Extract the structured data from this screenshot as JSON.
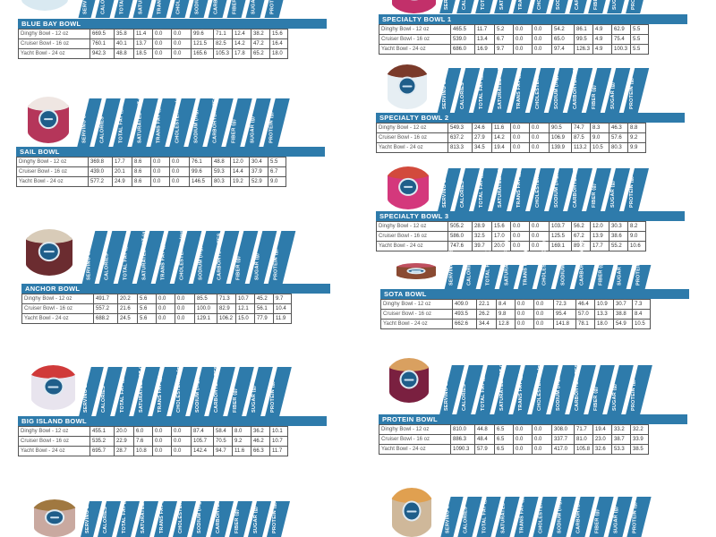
{
  "columns": [
    "SERVING SIZE",
    "CALORIES",
    "TOTAL FAT (g)",
    "SATURATED FAT (g)",
    "TRANS FAT (g)",
    "CHOLESTEROL (mg)",
    "SODIUM (mg)",
    "CARBOHYDRATES",
    "FIBER (g)",
    "SUGAR (g)",
    "PROTEIN (g)"
  ],
  "sizes": [
    "Dinghy Bowl - 12 oz",
    "Cruiser Bowl - 16 oz",
    "Yacht Bowl - 24 oz"
  ],
  "colors": {
    "accent": "#2e7bab",
    "border": "#555555",
    "text": "#333333"
  },
  "bowls": [
    {
      "name": "BLUE BAY BOWL",
      "rows": [
        [
          "669.5",
          "35.8",
          "11.4",
          "0.0",
          "0.0",
          "99.6",
          "71.1",
          "12.4",
          "38.2",
          "15.6"
        ],
        [
          "760.1",
          "40.1",
          "13.7",
          "0.0",
          "0.0",
          "121.5",
          "82.5",
          "14.2",
          "47.2",
          "16.4"
        ],
        [
          "942.3",
          "48.8",
          "18.5",
          "0.0",
          "0.0",
          "165.6",
          "105.3",
          "17.8",
          "65.2",
          "18.0"
        ]
      ]
    },
    {
      "name": "SPECIALTY BOWL 1",
      "rows": [
        [
          "465.5",
          "11.7",
          "5.2",
          "0.0",
          "0.0",
          "54.2",
          "86.1",
          "4.9",
          "62.9",
          "5.5"
        ],
        [
          "539.0",
          "13.4",
          "6.7",
          "0.0",
          "0.0",
          "65.0",
          "99.5",
          "4.9",
          "75.4",
          "5.5"
        ],
        [
          "686.0",
          "16.9",
          "9.7",
          "0.0",
          "0.0",
          "97.4",
          "126.3",
          "4.9",
          "100.3",
          "5.5"
        ]
      ]
    },
    {
      "name": "SAIL BOWL",
      "rows": [
        [
          "369.8",
          "17.7",
          "8.6",
          "0.0",
          "0.0",
          "76.1",
          "48.8",
          "12.0",
          "30.4",
          "5.5"
        ],
        [
          "439.0",
          "20.1",
          "8.6",
          "0.0",
          "0.0",
          "99.6",
          "59.3",
          "14.4",
          "37.9",
          "6.7"
        ],
        [
          "577.2",
          "24.9",
          "8.6",
          "0.0",
          "0.0",
          "146.5",
          "80.3",
          "19.2",
          "52.9",
          "9.0"
        ]
      ]
    },
    {
      "name": "SPECIALTY BOWL 2",
      "rows": [
        [
          "549.3",
          "24.6",
          "11.6",
          "0.0",
          "0.0",
          "90.5",
          "74.7",
          "8.3",
          "46.3",
          "8.8"
        ],
        [
          "637.2",
          "27.9",
          "14.2",
          "0.0",
          "0.0",
          "106.9",
          "87.5",
          "9.0",
          "57.6",
          "9.2"
        ],
        [
          "813.3",
          "34.5",
          "19.4",
          "0.0",
          "0.0",
          "139.9",
          "113.2",
          "10.5",
          "80.3",
          "9.9"
        ]
      ]
    },
    {
      "name": "SPECIALTY BOWL 3",
      "rows": [
        [
          "505.2",
          "28.9",
          "15.6",
          "0.0",
          "0.0",
          "103.7",
          "56.2",
          "12.0",
          "30.3",
          "8.2"
        ],
        [
          "586.0",
          "32.5",
          "17.0",
          "0.0",
          "0.0",
          "125.5",
          "67.2",
          "13.9",
          "38.6",
          "9.0"
        ],
        [
          "747.6",
          "39.7",
          "20.0",
          "0.0",
          "0.0",
          "169.1",
          "89.2",
          "17.7",
          "55.2",
          "10.6"
        ]
      ]
    },
    {
      "name": "ANCHOR BOWL",
      "rows": [
        [
          "491.7",
          "20.2",
          "5.6",
          "0.0",
          "0.0",
          "85.5",
          "71.3",
          "10.7",
          "45.2",
          "9.7"
        ],
        [
          "557.2",
          "21.6",
          "5.6",
          "0.0",
          "0.0",
          "100.0",
          "82.9",
          "12.1",
          "56.1",
          "10.4"
        ],
        [
          "688.2",
          "24.5",
          "5.6",
          "0.0",
          "0.0",
          "129.1",
          "106.2",
          "15.0",
          "77.9",
          "11.9"
        ]
      ]
    },
    {
      "name": "SOTA BOWL",
      "rows": [
        [
          "409.0",
          "22.1",
          "8.4",
          "0.0",
          "0.0",
          "72.3",
          "46.4",
          "10.9",
          "30.7",
          "7.3"
        ],
        [
          "493.5",
          "26.2",
          "9.8",
          "0.0",
          "0.0",
          "95.4",
          "57.0",
          "13.3",
          "38.8",
          "8.4"
        ],
        [
          "662.6",
          "34.4",
          "12.8",
          "0.0",
          "0.0",
          "141.8",
          "78.1",
          "18.0",
          "54.9",
          "10.5"
        ]
      ]
    },
    {
      "name": "BIG ISLAND BOWL",
      "rows": [
        [
          "455.1",
          "20.0",
          "6.0",
          "0.0",
          "0.0",
          "87.4",
          "58.4",
          "8.0",
          "36.2",
          "10.1"
        ],
        [
          "535.2",
          "22.9",
          "7.6",
          "0.0",
          "0.0",
          "105.7",
          "70.5",
          "9.2",
          "46.2",
          "10.7"
        ],
        [
          "695.7",
          "28.7",
          "10.8",
          "0.0",
          "0.0",
          "142.4",
          "94.7",
          "11.6",
          "66.3",
          "11.7"
        ]
      ]
    },
    {
      "name": "PROTEIN BOWL",
      "rows": [
        [
          "810.0",
          "44.8",
          "6.5",
          "0.0",
          "0.0",
          "308.0",
          "71.7",
          "19.4",
          "33.2",
          "32.2"
        ],
        [
          "886.3",
          "48.4",
          "6.5",
          "0.0",
          "0.0",
          "337.7",
          "81.0",
          "23.0",
          "38.7",
          "33.9"
        ],
        [
          "1090.3",
          "57.9",
          "6.5",
          "0.0",
          "0.0",
          "417.0",
          "105.8",
          "32.6",
          "53.3",
          "38.5"
        ]
      ]
    }
  ]
}
